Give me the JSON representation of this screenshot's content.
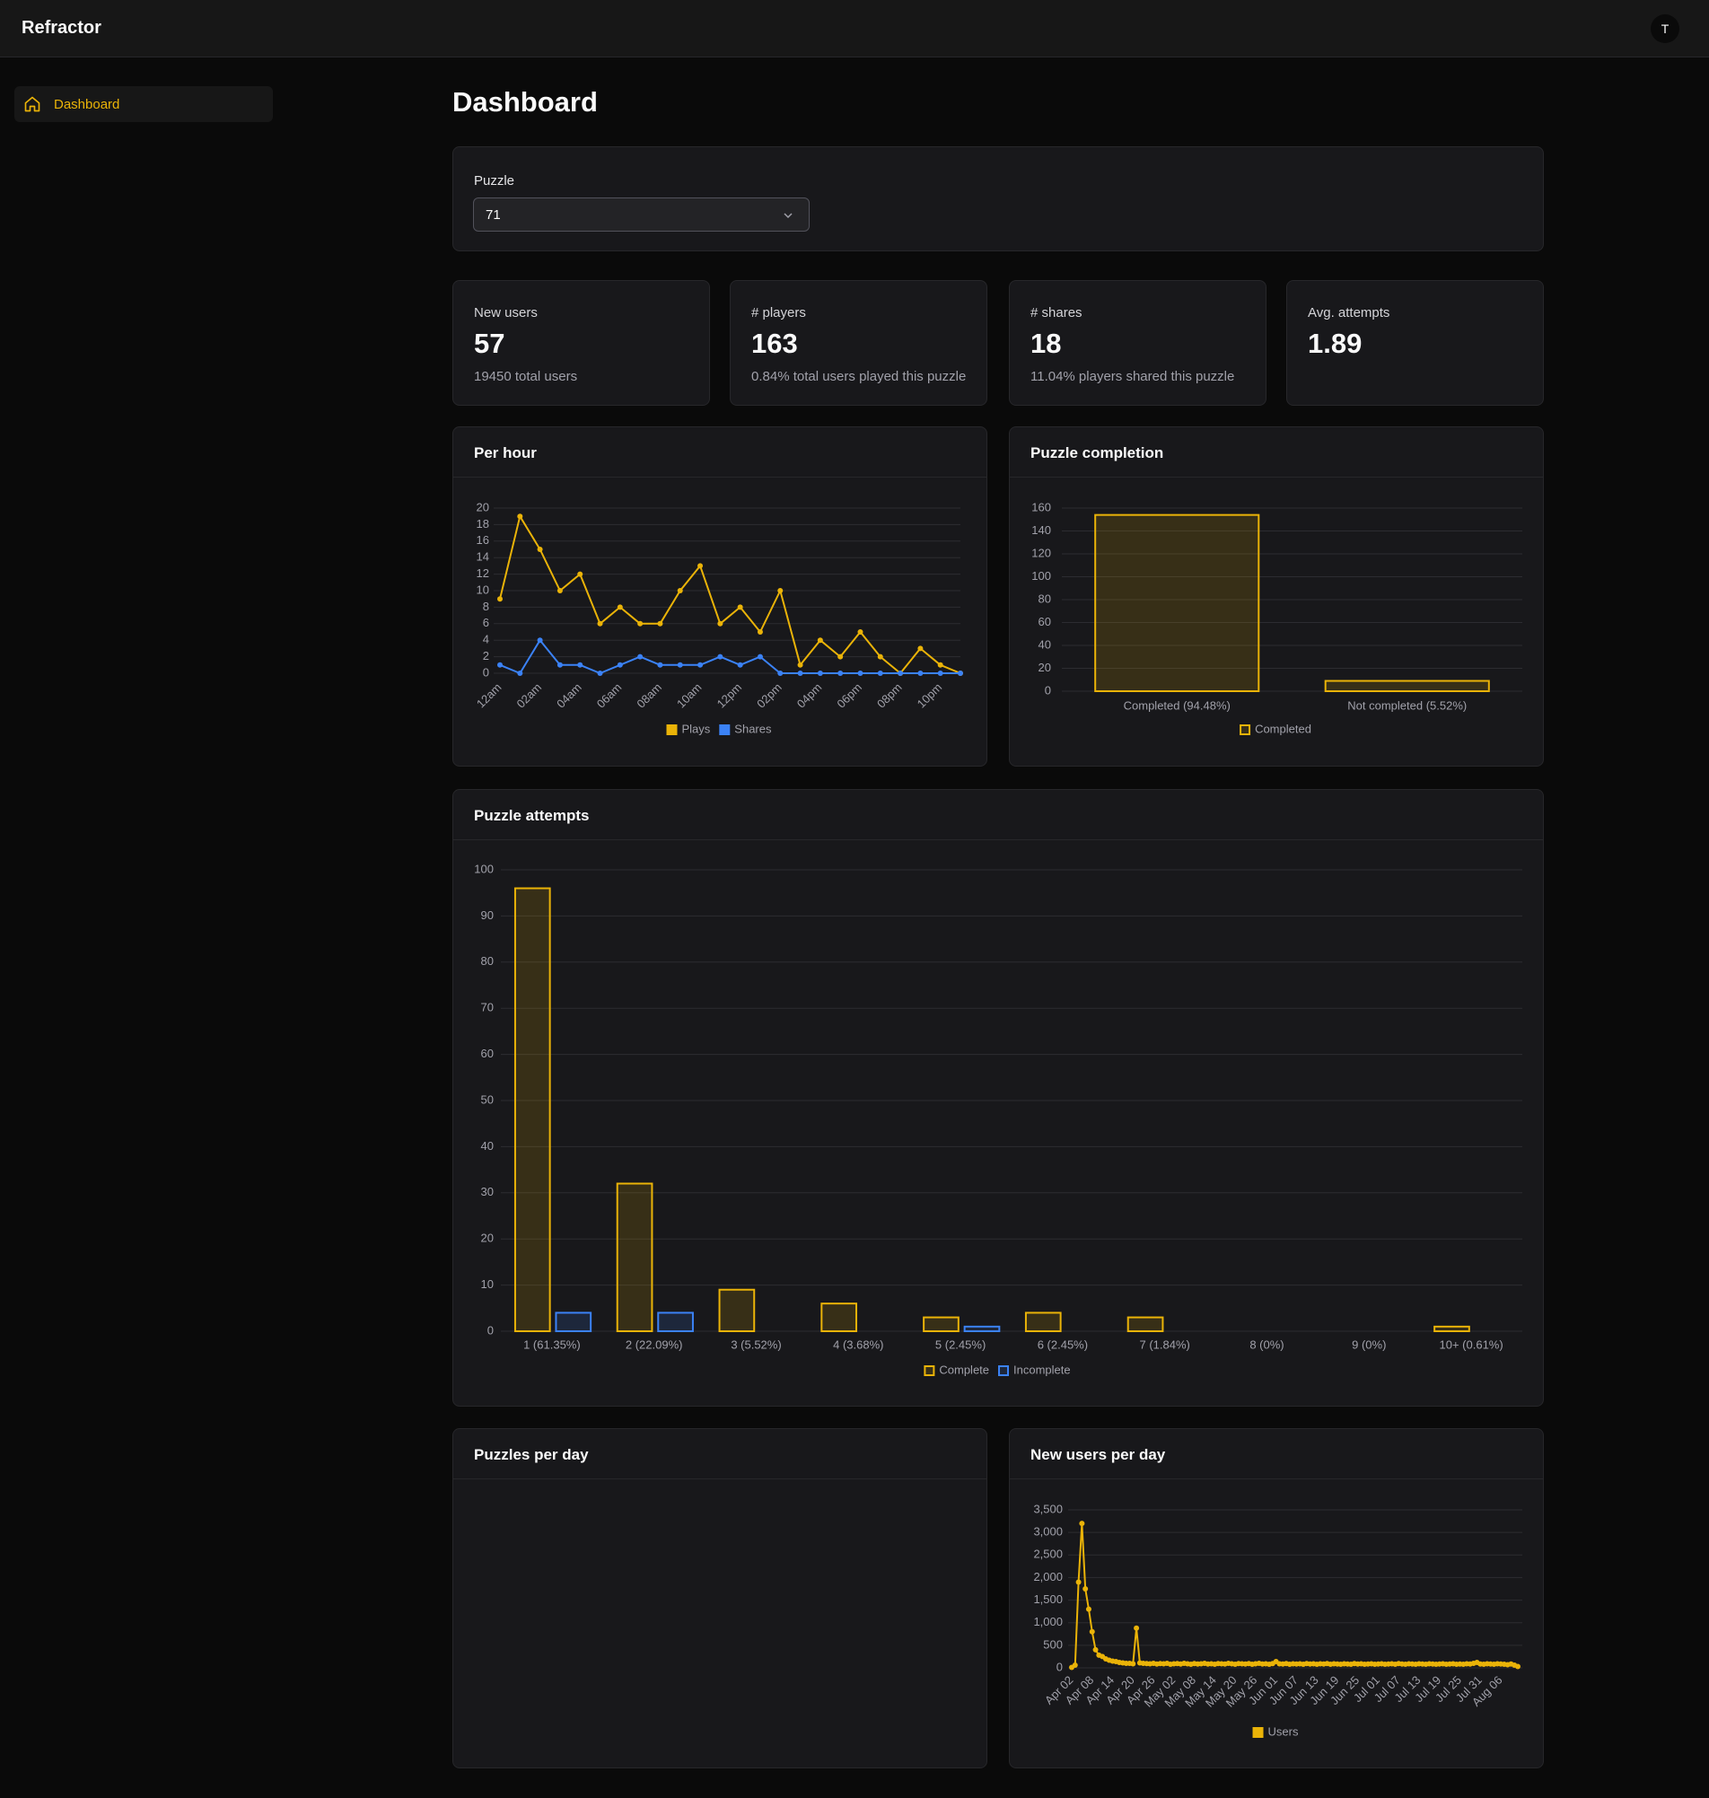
{
  "header": {
    "brand": "Refractor",
    "avatar": "T"
  },
  "sidebar": {
    "items": [
      "Dashboard"
    ]
  },
  "page_title": "Dashboard",
  "filter": {
    "label": "Puzzle",
    "value": "71"
  },
  "stats": [
    {
      "label": "New users",
      "value": 57,
      "sub": "19450 total users"
    },
    {
      "label": "# players",
      "value": 163,
      "sub": "0.84% total users played this puzzle"
    },
    {
      "label": "# shares",
      "value": 18,
      "sub": "11.04% players shared this puzzle"
    },
    {
      "label": "Avg. attempts",
      "value": 1.89
    }
  ],
  "chart_data": [
    {
      "type": "line",
      "title": "Per hour",
      "categories": [
        "12am",
        null,
        "02am",
        null,
        "04am",
        null,
        "06am",
        null,
        "08am",
        null,
        "10am",
        null,
        "12pm",
        null,
        "02pm",
        null,
        "04pm",
        null,
        "06pm",
        null,
        "08pm",
        null,
        "10pm",
        null
      ],
      "series": [
        {
          "name": "Plays",
          "color": "#eab308",
          "values": [
            9,
            19,
            15,
            10,
            12,
            6,
            8,
            6,
            6,
            10,
            13,
            6,
            8,
            5,
            10,
            1,
            4,
            2,
            5,
            2,
            0,
            3,
            1,
            0
          ]
        },
        {
          "name": "Shares",
          "color": "#3b82f6",
          "values": [
            1,
            0,
            4,
            1,
            1,
            0,
            1,
            2,
            1,
            1,
            1,
            2,
            1,
            2,
            0,
            0,
            0,
            0,
            0,
            0,
            0,
            0,
            0,
            0
          ]
        }
      ],
      "ylim": [
        0,
        20
      ],
      "yticks": [
        0,
        2,
        4,
        6,
        8,
        10,
        12,
        14,
        16,
        18,
        20
      ],
      "grid": true
    },
    {
      "type": "bar",
      "title": "Puzzle completion",
      "categories": [
        "Completed (94.48%)",
        "Not completed (5.52%)"
      ],
      "series": [
        {
          "name": "Completed",
          "color": "#eab308",
          "values": [
            154,
            9
          ]
        }
      ],
      "ylim": [
        0,
        160
      ],
      "yticks": [
        0,
        20,
        40,
        60,
        80,
        100,
        120,
        140,
        160
      ],
      "grid": true
    },
    {
      "type": "bar",
      "title": "Puzzle attempts",
      "categories": [
        "1 (61.35%)",
        "2 (22.09%)",
        "3 (5.52%)",
        "4 (3.68%)",
        "5 (2.45%)",
        "6 (2.45%)",
        "7 (1.84%)",
        "8 (0%)",
        "9 (0%)",
        "10+ (0.61%)"
      ],
      "series": [
        {
          "name": "Complete",
          "color": "#eab308",
          "values": [
            96,
            32,
            9,
            6,
            3,
            4,
            3,
            0,
            0,
            1
          ]
        },
        {
          "name": "Incomplete",
          "color": "#3b82f6",
          "values": [
            4,
            4,
            0,
            0,
            1,
            0,
            0,
            0,
            0,
            0
          ]
        }
      ],
      "ylim": [
        0,
        100
      ],
      "yticks": [
        0,
        10,
        20,
        30,
        40,
        50,
        60,
        70,
        80,
        90,
        100
      ],
      "grid": true
    },
    {
      "title": "Puzzles per day"
    },
    {
      "type": "line",
      "title": "New users per day",
      "categories": [
        "Apr 02",
        null,
        null,
        null,
        null,
        null,
        "Apr 08",
        null,
        null,
        null,
        null,
        null,
        "Apr 14",
        null,
        null,
        null,
        null,
        null,
        "Apr 20",
        null,
        null,
        null,
        null,
        null,
        "Apr 26",
        null,
        null,
        null,
        null,
        null,
        "May 02",
        null,
        null,
        null,
        null,
        null,
        "May 08",
        null,
        null,
        null,
        null,
        null,
        "May 14",
        null,
        null,
        null,
        null,
        null,
        "May 20",
        null,
        null,
        null,
        null,
        null,
        "May 26",
        null,
        null,
        null,
        null,
        null,
        "Jun 01",
        null,
        null,
        null,
        null,
        null,
        "Jun 07",
        null,
        null,
        null,
        null,
        null,
        "Jun 13",
        null,
        null,
        null,
        null,
        null,
        "Jun 19",
        null,
        null,
        null,
        null,
        null,
        "Jun 25",
        null,
        null,
        null,
        null,
        null,
        "Jul 01",
        null,
        null,
        null,
        null,
        null,
        "Jul 07",
        null,
        null,
        null,
        null,
        null,
        "Jul 13",
        null,
        null,
        null,
        null,
        null,
        "Jul 19",
        null,
        null,
        null,
        null,
        null,
        "Jul 25",
        null,
        null,
        null,
        null,
        null,
        "Jul 31",
        null,
        null,
        null,
        null,
        null,
        "Aug 06",
        null,
        null,
        null,
        null,
        null
      ],
      "series": [
        {
          "name": "Users",
          "color": "#eab308",
          "values": [
            10,
            60,
            1900,
            3200,
            1750,
            1300,
            800,
            400,
            280,
            250,
            200,
            170,
            150,
            140,
            120,
            110,
            100,
            100,
            90,
            880,
            110,
            100,
            95,
            90,
            100,
            85,
            95,
            90,
            100,
            80,
            90,
            95,
            85,
            100,
            90,
            80,
            95,
            85,
            90,
            100,
            85,
            90,
            80,
            95,
            90,
            85,
            100,
            90,
            80,
            95,
            90,
            85,
            95,
            80,
            90,
            100,
            85,
            90,
            80,
            95,
            140,
            90,
            85,
            95,
            80,
            90,
            85,
            90,
            80,
            95,
            85,
            90,
            80,
            90,
            85,
            95,
            80,
            90,
            85,
            80,
            90,
            85,
            80,
            95,
            85,
            90,
            80,
            85,
            90,
            80,
            85,
            90,
            80,
            85,
            90,
            80,
            95,
            85,
            80,
            90,
            85,
            80,
            90,
            85,
            80,
            90,
            85,
            80,
            85,
            90,
            80,
            85,
            90,
            80,
            85,
            80,
            90,
            85,
            100,
            120,
            85,
            80,
            90,
            85,
            80,
            90,
            85,
            80,
            70,
            85,
            60,
            30
          ]
        }
      ],
      "ylim": [
        0,
        3500
      ],
      "yticks": [
        0,
        500,
        {
          "value": 1000,
          "label": "1,000"
        },
        {
          "value": 1500,
          "label": "1,500"
        },
        {
          "value": 2000,
          "label": "2,000"
        },
        {
          "value": 2500,
          "label": "2,500"
        },
        {
          "value": 3000,
          "label": "3,000"
        },
        {
          "value": 3500,
          "label": "3,500"
        }
      ],
      "grid": true
    }
  ]
}
